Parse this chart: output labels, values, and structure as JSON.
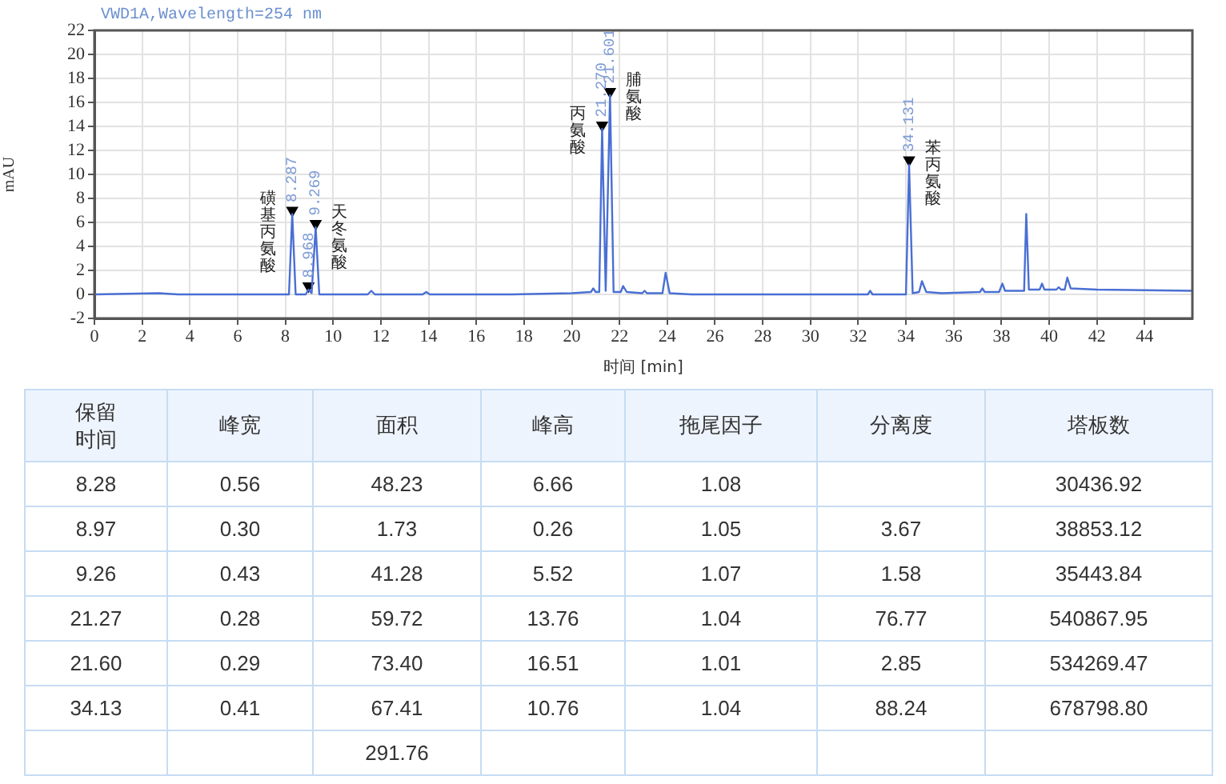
{
  "chart_data": [
    {
      "type": "line",
      "title": "VWD1A,Wavelength=254 nm",
      "xlabel": "时间 [min]",
      "ylabel": "mAU",
      "xlim": [
        0,
        46
      ],
      "ylim": [
        -2,
        22
      ],
      "xticks": [
        0,
        2,
        4,
        6,
        8,
        10,
        12,
        14,
        16,
        18,
        20,
        22,
        24,
        26,
        28,
        30,
        32,
        34,
        36,
        38,
        40,
        42,
        44
      ],
      "yticks": [
        -2,
        0,
        2,
        4,
        6,
        8,
        10,
        12,
        14,
        16,
        18,
        20,
        22
      ],
      "grid": true,
      "series": [
        {
          "type": "line",
          "color": "#4a6fd4",
          "marker": "none",
          "x": [
            0,
            2.7,
            3.5,
            6,
            8.15,
            8.287,
            8.43,
            8.85,
            8.968,
            9.1,
            9.269,
            9.42,
            11.45,
            11.6,
            11.75,
            13.75,
            13.9,
            14.05,
            17.5,
            20,
            20.8,
            20.9,
            21.0,
            21.15,
            21.27,
            21.42,
            21.601,
            21.75,
            22.05,
            22.15,
            22.3,
            22.95,
            23.05,
            23.15,
            23.8,
            23.93,
            24.1,
            25,
            32.4,
            32.5,
            32.6,
            34.0,
            34.131,
            34.28,
            34.55,
            34.67,
            34.85,
            35.5,
            37.1,
            37.2,
            37.3,
            37.9,
            38.04,
            38.15,
            38.95,
            39.04,
            39.15,
            39.6,
            39.7,
            39.8,
            40.3,
            40.4,
            40.5,
            40.65,
            40.76,
            40.9,
            42,
            46
          ],
          "values": [
            0,
            0.1,
            0,
            0,
            0,
            6.7,
            0,
            0,
            0.4,
            0.1,
            5.6,
            0,
            0,
            0.3,
            0,
            0,
            0.2,
            0,
            0,
            0.1,
            0.2,
            0.5,
            0.2,
            0.2,
            13.8,
            0.3,
            16.6,
            0.2,
            0.2,
            0.7,
            0.2,
            0.1,
            0.3,
            0.1,
            0.1,
            1.8,
            0.1,
            0,
            0,
            0.3,
            0,
            0,
            10.8,
            0.1,
            0.2,
            1.1,
            0.2,
            0.1,
            0.2,
            0.5,
            0.2,
            0.2,
            0.9,
            0.3,
            0.3,
            6.7,
            0.4,
            0.4,
            0.9,
            0.4,
            0.4,
            0.6,
            0.4,
            0.4,
            1.4,
            0.5,
            0.4,
            0.3
          ]
        },
        {
          "type": "scatter",
          "color": "#000000",
          "marker": "triangle",
          "x": [
            8.287,
            8.968,
            9.269,
            21.27,
            21.601,
            34.131
          ],
          "values": [
            7.0,
            0.7,
            5.9,
            14.1,
            16.9,
            11.2
          ]
        }
      ],
      "annotations": [
        {
          "text": "8.287",
          "x": 8.287,
          "y": 7.0
        },
        {
          "text": "磺基丙氨酸",
          "x": 8.287,
          "y": 7.0
        },
        {
          "text": "8.968",
          "x": 8.968,
          "y": 0.7
        },
        {
          "text": "9.269",
          "x": 9.269,
          "y": 5.9
        },
        {
          "text": "天冬氨酸",
          "x": 9.269,
          "y": 5.9
        },
        {
          "text": "21.270",
          "x": 21.27,
          "y": 14.1
        },
        {
          "text": "丙氨酸",
          "x": 21.27,
          "y": 14.1
        },
        {
          "text": "21.601",
          "x": 21.601,
          "y": 16.9
        },
        {
          "text": "脯氨酸",
          "x": 21.601,
          "y": 16.9
        },
        {
          "text": "34.131",
          "x": 34.131,
          "y": 11.2
        },
        {
          "text": "苯丙氨酸",
          "x": 34.131,
          "y": 11.2
        }
      ]
    },
    {
      "type": "other",
      "categories": [
        "保留时间",
        "峰宽",
        "面积",
        "峰高",
        "拖尾因子",
        "分离度",
        "塔板数"
      ],
      "annotations": [
        "8.28",
        "0.56",
        "48.23",
        "6.66",
        "1.08",
        null,
        "30436.92",
        "8.97",
        "0.30",
        "1.73",
        "0.26",
        "1.05",
        "3.67",
        "38853.12",
        "9.26",
        "0.43",
        "41.28",
        "5.52",
        "1.07",
        "1.58",
        "35443.84",
        "21.27",
        "0.28",
        "59.72",
        "13.76",
        "1.04",
        "76.77",
        "540867.95",
        "21.60",
        "0.29",
        "73.40",
        "16.51",
        "1.01",
        "2.85",
        "534269.47",
        "34.13",
        "0.41",
        "67.41",
        "10.76",
        "1.04",
        "88.24",
        "678798.80",
        null,
        null,
        "291.76",
        null,
        null,
        null,
        null
      ]
    }
  ]
}
